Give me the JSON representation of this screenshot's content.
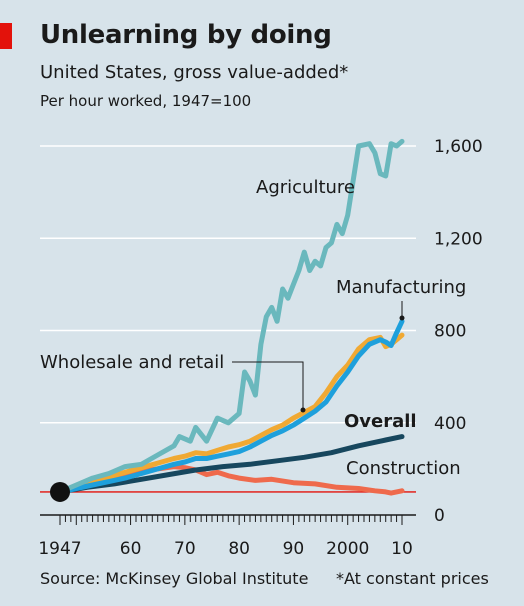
{
  "header": {
    "title": "Unlearning by doing",
    "subtitle": "United States, gross value-added*",
    "unit": "Per hour worked, 1947=100"
  },
  "footer": {
    "source": "Source: McKinsey Global Institute",
    "footnote": "*At constant prices"
  },
  "colors": {
    "background": "#d7e3ea",
    "accent": "#e3120b",
    "agriculture": "#6ab8bd",
    "manufacturing": "#1ea0dc",
    "wholesale": "#f0a933",
    "overall": "#17475e",
    "construction": "#ef6a4c",
    "baseline": "#e3120b"
  },
  "chart_data": {
    "type": "line",
    "ylim": [
      0,
      1700
    ],
    "xlim": [
      1947,
      2010
    ],
    "y_ticks": [
      {
        "value": 0,
        "label": "0"
      },
      {
        "value": 400,
        "label": "400"
      },
      {
        "value": 800,
        "label": "800"
      },
      {
        "value": 1200,
        "label": "1,200"
      },
      {
        "value": 1600,
        "label": "1,600"
      }
    ],
    "x_tick_labels": [
      {
        "value": 1947,
        "label": "1947"
      },
      {
        "value": 1960,
        "label": "60"
      },
      {
        "value": 1970,
        "label": "70"
      },
      {
        "value": 1980,
        "label": "80"
      },
      {
        "value": 1990,
        "label": "90"
      },
      {
        "value": 2000,
        "label": "2000"
      },
      {
        "value": 2010,
        "label": "10"
      }
    ],
    "baseline_value": 100,
    "series": [
      {
        "name": "Agriculture",
        "color_key": "agriculture",
        "x": [
          1947,
          1950,
          1953,
          1956,
          1959,
          1962,
          1965,
          1968,
          1969,
          1971,
          1972,
          1974,
          1976,
          1978,
          1980,
          1981,
          1982,
          1983,
          1984,
          1985,
          1986,
          1987,
          1988,
          1989,
          1990,
          1991,
          1992,
          1993,
          1994,
          1995,
          1996,
          1997,
          1998,
          1999,
          2000,
          2002,
          2004,
          2005,
          2006,
          2007,
          2008,
          2009,
          2010
        ],
        "y": [
          100,
          130,
          160,
          180,
          210,
          220,
          260,
          300,
          340,
          320,
          380,
          320,
          420,
          400,
          440,
          620,
          580,
          520,
          740,
          860,
          900,
          840,
          980,
          940,
          1000,
          1060,
          1140,
          1060,
          1100,
          1080,
          1160,
          1180,
          1260,
          1220,
          1300,
          1600,
          1610,
          1570,
          1480,
          1470,
          1610,
          1600,
          1620
        ]
      },
      {
        "name": "Wholesale and retail",
        "color_key": "wholesale",
        "x": [
          1947,
          1950,
          1953,
          1956,
          1959,
          1962,
          1965,
          1968,
          1970,
          1972,
          1974,
          1976,
          1978,
          1980,
          1982,
          1984,
          1986,
          1988,
          1990,
          1992,
          1994,
          1996,
          1998,
          2000,
          2002,
          2004,
          2006,
          2007,
          2008,
          2009,
          2010
        ],
        "y": [
          100,
          125,
          145,
          165,
          185,
          205,
          225,
          245,
          255,
          270,
          265,
          280,
          295,
          305,
          320,
          345,
          370,
          390,
          420,
          445,
          470,
          530,
          600,
          650,
          720,
          760,
          770,
          730,
          740,
          760,
          780
        ]
      },
      {
        "name": "Manufacturing",
        "color_key": "manufacturing",
        "x": [
          1947,
          1950,
          1953,
          1956,
          1959,
          1962,
          1965,
          1968,
          1970,
          1972,
          1974,
          1976,
          1978,
          1980,
          1982,
          1984,
          1986,
          1988,
          1990,
          1992,
          1994,
          1996,
          1998,
          2000,
          2002,
          2004,
          2006,
          2007,
          2008,
          2009,
          2010
        ],
        "y": [
          100,
          115,
          130,
          145,
          160,
          180,
          200,
          220,
          230,
          245,
          245,
          255,
          265,
          275,
          295,
          320,
          345,
          365,
          390,
          420,
          450,
          490,
          560,
          620,
          690,
          740,
          760,
          750,
          735,
          790,
          840
        ]
      },
      {
        "name": "Overall",
        "color_key": "overall",
        "x": [
          1947,
          1952,
          1957,
          1962,
          1967,
          1972,
          1977,
          1982,
          1987,
          1992,
          1997,
          2002,
          2007,
          2010
        ],
        "y": [
          100,
          120,
          135,
          155,
          175,
          195,
          210,
          220,
          235,
          250,
          270,
          300,
          325,
          340
        ]
      },
      {
        "name": "Construction",
        "color_key": "construction",
        "x": [
          1947,
          1950,
          1953,
          1956,
          1959,
          1962,
          1965,
          1968,
          1970,
          1972,
          1974,
          1976,
          1978,
          1980,
          1983,
          1986,
          1990,
          1994,
          1998,
          2002,
          2005,
          2007,
          2008,
          2010
        ],
        "y": [
          100,
          120,
          135,
          150,
          170,
          190,
          200,
          210,
          205,
          195,
          175,
          185,
          170,
          160,
          150,
          155,
          140,
          135,
          120,
          115,
          105,
          100,
          95,
          105
        ]
      }
    ],
    "annotations": [
      {
        "text": "Agriculture",
        "bold": false
      },
      {
        "text": "Manufacturing",
        "bold": false
      },
      {
        "text": "Wholesale and retail",
        "bold": false
      },
      {
        "text": "Overall",
        "bold": true
      },
      {
        "text": "Construction",
        "bold": false
      }
    ]
  }
}
